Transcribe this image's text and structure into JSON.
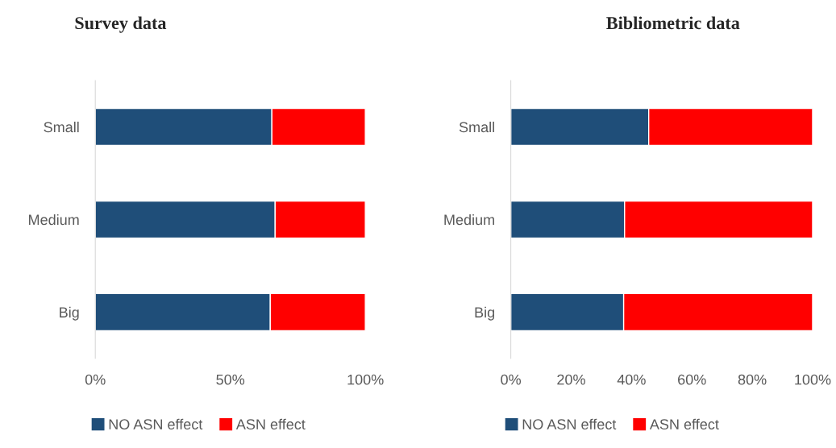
{
  "chart_data": [
    {
      "type": "bar",
      "title": "Survey data",
      "orientation": "horizontal",
      "stacked": true,
      "categories": [
        "Small",
        "Medium",
        "Big"
      ],
      "series": [
        {
          "name": "NO ASN effect",
          "color": "#1f4e79",
          "values": [
            65.4,
            66.6,
            64.8
          ]
        },
        {
          "name": "ASN effect",
          "color": "#ff0000",
          "values": [
            34.6,
            33.4,
            35.2
          ]
        }
      ],
      "xlim": [
        0,
        100
      ],
      "xticks": [
        {
          "value": 0,
          "label": "0%"
        },
        {
          "value": 50,
          "label": "50%"
        },
        {
          "value": 100,
          "label": "100%"
        }
      ],
      "grid": false,
      "legend": "bottom"
    },
    {
      "type": "bar",
      "title": "Bibliometric data",
      "orientation": "horizontal",
      "stacked": true,
      "categories": [
        "Small",
        "Medium",
        "Big"
      ],
      "series": [
        {
          "name": "NO ASN effect",
          "color": "#1f4e79",
          "values": [
            45.7,
            37.7,
            37.4
          ]
        },
        {
          "name": "ASN effect",
          "color": "#ff0000",
          "values": [
            54.3,
            62.3,
            62.6
          ]
        }
      ],
      "xlim": [
        0,
        100
      ],
      "xticks": [
        {
          "value": 0,
          "label": "0%"
        },
        {
          "value": 20,
          "label": "20%"
        },
        {
          "value": 40,
          "label": "40%"
        },
        {
          "value": 60,
          "label": "60%"
        },
        {
          "value": 80,
          "label": "80%"
        },
        {
          "value": 100,
          "label": "100%"
        }
      ],
      "grid": false,
      "legend": "bottom"
    }
  ]
}
